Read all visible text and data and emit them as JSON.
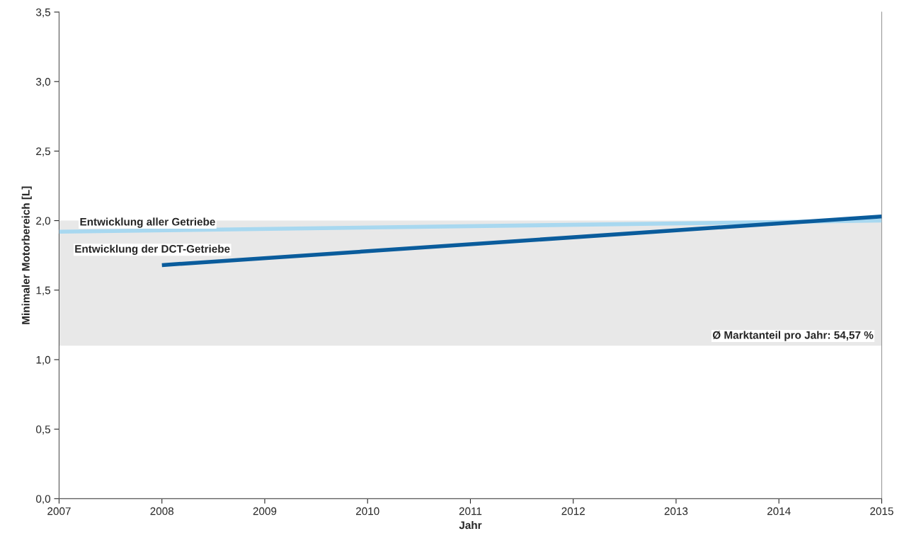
{
  "chart_data": {
    "type": "line",
    "xlabel": "Jahr",
    "ylabel": "Minimaler Motorbereich [L]",
    "series": [
      {
        "name": "Entwicklung aller Getriebe",
        "color": "#a8d8f0",
        "x": [
          2007,
          2015
        ],
        "values": [
          1.92,
          2.0
        ]
      },
      {
        "name": "Entwicklung der DCT-Getriebe",
        "color": "#0a5c9c",
        "x": [
          2008,
          2015
        ],
        "values": [
          1.68,
          2.03
        ]
      }
    ],
    "bands": [
      {
        "axis": "y",
        "from": 1.1,
        "to": 2.0,
        "label": "Ø Marktanteil pro Jahr: 54,57 %",
        "color": "#e8e8e8"
      }
    ],
    "xlim": [
      2007,
      2015
    ],
    "xticks": [
      2007,
      2008,
      2009,
      2010,
      2011,
      2012,
      2013,
      2014,
      2015
    ],
    "ylim": [
      0,
      3.5
    ],
    "yticks": [
      {
        "value": 0,
        "label": "0,0"
      },
      {
        "value": 0.5,
        "label": "0,5"
      },
      {
        "value": 1.0,
        "label": "1,0"
      },
      {
        "value": 1.5,
        "label": "1,5"
      },
      {
        "value": 2.0,
        "label": "2,0"
      },
      {
        "value": 2.5,
        "label": "2,5"
      },
      {
        "value": 3.0,
        "label": "3,0"
      },
      {
        "value": 3.5,
        "label": "3,5"
      }
    ],
    "grid": false,
    "legend": false
  }
}
